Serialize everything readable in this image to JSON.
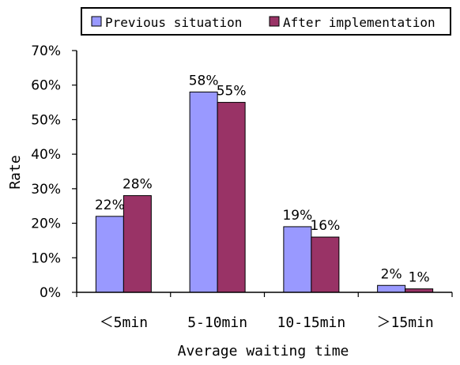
{
  "chart_data": {
    "type": "bar",
    "categories": [
      "＜5min",
      "5-10min",
      "10-15min",
      "＞15min"
    ],
    "series": [
      {
        "name": "Previous situation",
        "color": "#9999ff",
        "values": [
          22,
          58,
          19,
          2
        ],
        "labels": [
          "22%",
          "58%",
          "19%",
          "2%"
        ]
      },
      {
        "name": "After implementation",
        "color": "#993366",
        "values": [
          28,
          55,
          16,
          1
        ],
        "labels": [
          "28%",
          "55%",
          "16%",
          "1%"
        ]
      }
    ],
    "xlabel": "Average waiting time",
    "ylabel": "Rate",
    "ylim": [
      0,
      70
    ],
    "yticks": [
      0,
      10,
      20,
      30,
      40,
      50,
      60,
      70
    ],
    "ytick_labels": [
      "0%",
      "10%",
      "20%",
      "30%",
      "40%",
      "50%",
      "60%",
      "70%"
    ],
    "grid": false,
    "legend_position": "top"
  }
}
